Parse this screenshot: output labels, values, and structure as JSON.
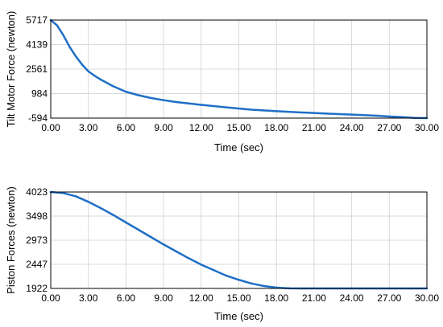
{
  "chart_data": [
    {
      "type": "line",
      "title": "",
      "xlabel": "Time (sec)",
      "ylabel": "Tilt Motor Force (newton)",
      "xlim": [
        0,
        30
      ],
      "ylim": [
        -594,
        5717
      ],
      "xticks": [
        "0.00",
        "3.00",
        "6.00",
        "9.00",
        "12.00",
        "15.00",
        "18.00",
        "21.00",
        "24.00",
        "27.00",
        "30.00"
      ],
      "yticks": [
        "-594",
        "984",
        "2561",
        "4139",
        "5717"
      ],
      "grid": true,
      "color": "#1f6fc6",
      "series": [
        {
          "x": [
            0,
            0.5,
            1,
            1.5,
            2,
            2.5,
            3,
            3.5,
            4,
            5,
            6,
            7,
            8,
            9,
            10,
            12,
            14,
            16,
            18,
            20,
            22,
            24,
            26,
            27,
            28,
            29,
            30
          ],
          "y": [
            5717,
            5380,
            4750,
            4000,
            3380,
            2850,
            2420,
            2130,
            1880,
            1450,
            1100,
            880,
            700,
            560,
            440,
            260,
            100,
            -50,
            -150,
            -230,
            -300,
            -370,
            -440,
            -490,
            -530,
            -580,
            -594
          ]
        }
      ]
    },
    {
      "type": "line",
      "title": "",
      "xlabel": "Time (sec)",
      "ylabel": "Piston Forces (newton)",
      "xlim": [
        0,
        30
      ],
      "ylim": [
        1922,
        4023
      ],
      "xticks": [
        "0.00",
        "3.00",
        "6.00",
        "9.00",
        "12.00",
        "15.00",
        "18.00",
        "21.00",
        "24.00",
        "27.00",
        "30.00"
      ],
      "yticks": [
        "1922",
        "2447",
        "2973",
        "3498",
        "4023"
      ],
      "grid": true,
      "color": "#1f6fc6",
      "series": [
        {
          "x": [
            0,
            1,
            2,
            3,
            4,
            5,
            6,
            7,
            8,
            9,
            10,
            11,
            12,
            13,
            14,
            15,
            16,
            17,
            18,
            19,
            20,
            22,
            24,
            27,
            30
          ],
          "y": [
            4023,
            4000,
            3930,
            3810,
            3670,
            3520,
            3360,
            3200,
            3040,
            2880,
            2730,
            2580,
            2440,
            2320,
            2200,
            2110,
            2030,
            1975,
            1940,
            1925,
            1922,
            1922,
            1922,
            1922,
            1922
          ]
        }
      ]
    }
  ]
}
